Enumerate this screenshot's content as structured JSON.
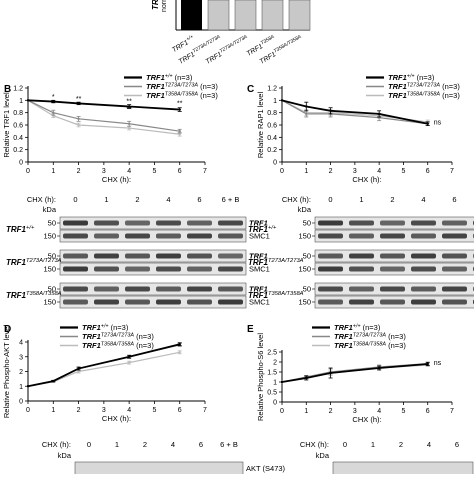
{
  "panel_a": {
    "ylabel": "TRF1",
    "ylabel2": "norm",
    "genotypes": [
      "TRF1+/+",
      "TRF1T273A/T273A",
      "TRF1T273A/T273A",
      "TRF1T358A",
      "TRF1T358A/T358A"
    ]
  },
  "panels": [
    {
      "letter": "B",
      "legend": [
        {
          "base": "TRF1",
          "sup": "+/+",
          "suffix": " (n=3)"
        },
        {
          "base": "TRF1",
          "sup": "T273A/T273A",
          "suffix": " (n=3)"
        },
        {
          "base": "TRF1",
          "sup": "T358A/T358A",
          "suffix": " (n=3)"
        }
      ]
    },
    {
      "letter": "C",
      "legend": [
        {
          "base": "TRF1",
          "sup": "+/+",
          "suffix": " (n=3)"
        },
        {
          "base": "TRF1",
          "sup": "T273A/T273A",
          "suffix": " (n=3)"
        },
        {
          "base": "TRF1",
          "sup": "T358A/T358A",
          "suffix": " (n=3)"
        }
      ]
    },
    {
      "letter": "D",
      "legend": [
        {
          "base": "TRF1",
          "sup": "+/+",
          "suffix": " (n=3)"
        },
        {
          "base": "TRF1",
          "sup": "T273A/T273A",
          "suffix": " (n=3)"
        },
        {
          "base": "TRF1",
          "sup": "T358A/T358A",
          "suffix": " (n=3)"
        }
      ]
    },
    {
      "letter": "E",
      "legend": [
        {
          "base": "TRF1",
          "sup": "+/+",
          "suffix": " (n=3)"
        },
        {
          "base": "TRF1",
          "sup": "T273A/T273A",
          "suffix": " (n=3)"
        },
        {
          "base": "TRF1",
          "sup": "T358A/T358A",
          "suffix": " (n=3)"
        }
      ]
    }
  ],
  "blots": {
    "header_prefix": "CHX (h):",
    "lanes": [
      "0",
      "1",
      "2",
      "4",
      "6",
      "6 + B"
    ],
    "kda": "kDa",
    "B": {
      "rows": [
        {
          "mw": "50",
          "protein": "TRF1",
          "italic": true
        },
        {
          "mw": "150",
          "protein": "SMC1",
          "italic": false
        },
        {
          "mw": "50",
          "protein": "TRF1",
          "italic": true
        },
        {
          "mw": "150",
          "protein": "SMC1",
          "italic": false
        },
        {
          "mw": "50",
          "protein": "TRF1",
          "italic": true
        },
        {
          "mw": "150",
          "protein": "SMC1",
          "italic": false
        }
      ],
      "genotypes": [
        {
          "base": "TRF1",
          "sup": "+/+"
        },
        {
          "base": "TRF1",
          "sup": "T273A/T273A"
        },
        {
          "base": "TRF1",
          "sup": "T358A/T358A"
        }
      ]
    },
    "C": {
      "rows": [
        {
          "mw": "50",
          "protein": "RAP1",
          "italic": false
        },
        {
          "mw": "150",
          "protein": "SMC1",
          "italic": false
        },
        {
          "mw": "50",
          "protein": "RAP1",
          "italic": false
        },
        {
          "mw": "150",
          "protein": "SMC1",
          "italic": false
        },
        {
          "mw": "50",
          "protein": "RAP1",
          "italic": false
        },
        {
          "mw": "150",
          "protein": "SMC1",
          "italic": false
        }
      ],
      "genotypes": [
        {
          "base": "TRF1",
          "sup": "+/+"
        },
        {
          "base": "TRF1",
          "sup": "T273A/T273A"
        },
        {
          "base": "TRF1",
          "sup": "T358A/T358A"
        }
      ]
    },
    "D_partial": {
      "label": "AKT (S473)"
    }
  },
  "chart_data": [
    {
      "type": "line",
      "panel": "B",
      "xlabel": "CHX (h):",
      "ylabel": "Relative TRF1 level",
      "xlim": [
        0,
        7
      ],
      "ylim": [
        0,
        1.2
      ],
      "xticks": [
        0,
        1,
        2,
        3,
        4,
        5,
        6,
        7
      ],
      "yticks": [
        0,
        0.2,
        0.4,
        0.6,
        0.8,
        1,
        1.2
      ],
      "ytick_labels": [
        "0",
        "0.2",
        "0.4",
        "0.6",
        "0.8",
        "1",
        "1.2"
      ],
      "x": [
        0,
        1,
        2,
        4,
        6
      ],
      "series": [
        {
          "name": "TRF1+/+",
          "values": [
            1.0,
            0.98,
            0.95,
            0.9,
            0.85
          ],
          "color": "#000000",
          "err": [
            0,
            0.02,
            0.02,
            0.03,
            0.03
          ]
        },
        {
          "name": "TRF1T273A/T273A",
          "values": [
            1.0,
            0.8,
            0.7,
            0.62,
            0.5
          ],
          "color": "#888888",
          "err": [
            0,
            0.04,
            0.04,
            0.04,
            0.03
          ]
        },
        {
          "name": "TRF1T358A/T358A",
          "values": [
            1.0,
            0.75,
            0.6,
            0.55,
            0.45
          ],
          "color": "#bbbbbb",
          "err": [
            0,
            0.03,
            0.03,
            0.03,
            0.03
          ]
        }
      ],
      "annotations": [
        {
          "x": 1,
          "y": 1.02,
          "text": "*"
        },
        {
          "x": 2,
          "y": 0.99,
          "text": "**"
        },
        {
          "x": 4,
          "y": 0.95,
          "text": "**"
        },
        {
          "x": 4,
          "y": 0.82,
          "text": "**"
        },
        {
          "x": 6,
          "y": 0.92,
          "text": "**"
        }
      ]
    },
    {
      "type": "line",
      "panel": "C",
      "xlabel": "CHX (h):",
      "ylabel": "Relative RAP1 level",
      "xlim": [
        0,
        7
      ],
      "ylim": [
        0,
        1.2
      ],
      "xticks": [
        0,
        1,
        2,
        3,
        4,
        5,
        6,
        7
      ],
      "yticks": [
        0,
        0.2,
        0.4,
        0.6,
        0.8,
        1,
        1.2
      ],
      "ytick_labels": [
        "0",
        "0.2",
        "0.4",
        "0.6",
        "0.8",
        "1",
        "1.2"
      ],
      "x": [
        0,
        1,
        2,
        4,
        6
      ],
      "series": [
        {
          "name": "TRF1+/+",
          "values": [
            1.0,
            0.9,
            0.83,
            0.78,
            0.62
          ],
          "color": "#000000",
          "err": [
            0,
            0.07,
            0.05,
            0.05,
            0.03
          ]
        },
        {
          "name": "TRF1T273A/T273A",
          "values": [
            1.0,
            0.78,
            0.78,
            0.72,
            0.62
          ],
          "color": "#888888",
          "err": [
            0,
            0.05,
            0.05,
            0.05,
            0.03
          ]
        },
        {
          "name": "TRF1T358A/T358A",
          "values": [
            1.0,
            0.8,
            0.8,
            0.75,
            0.65
          ],
          "color": "#bbbbbb",
          "err": [
            0,
            0.05,
            0.05,
            0.04,
            0.03
          ]
        }
      ],
      "annotations": [
        {
          "x": 6,
          "y": 0.64,
          "text": "ns"
        }
      ]
    },
    {
      "type": "line",
      "panel": "D",
      "xlabel": "CHX (h):",
      "ylabel": "Relative Phospho-AKT level",
      "xlim": [
        0,
        7
      ],
      "ylim": [
        0,
        4
      ],
      "xticks": [
        0,
        1,
        2,
        3,
        4,
        5,
        6,
        7
      ],
      "yticks": [
        0,
        1,
        2,
        3,
        4
      ],
      "ytick_labels": [
        "0",
        "1",
        "2",
        "3",
        "4"
      ],
      "x": [
        0,
        1,
        2,
        4,
        6
      ],
      "series": [
        {
          "name": "TRF1+/+",
          "values": [
            1.0,
            1.35,
            2.2,
            3.0,
            3.85
          ],
          "color": "#000000",
          "err": [
            0,
            0.05,
            0.1,
            0.1,
            0.1
          ]
        },
        {
          "name": "TRF1T273A/T273A",
          "values": [
            1.0,
            1.35,
            2.2,
            3.0,
            3.8
          ],
          "color": "#888888",
          "err": [
            0,
            0.05,
            0.1,
            0.1,
            0.1
          ]
        },
        {
          "name": "TRF1T358A/T358A",
          "values": [
            1.0,
            1.3,
            2.0,
            2.6,
            3.3
          ],
          "color": "#bbbbbb",
          "err": [
            0,
            0.05,
            0.1,
            0.1,
            0.1
          ]
        }
      ],
      "annotations": []
    },
    {
      "type": "line",
      "panel": "E",
      "xlabel": "CHX (h):",
      "ylabel": "Relative Phospho-S6 level",
      "xlim": [
        0,
        7
      ],
      "ylim": [
        0,
        2.5
      ],
      "xticks": [
        0,
        1,
        2,
        3,
        4,
        5,
        6,
        7
      ],
      "yticks": [
        0,
        0.5,
        1,
        1.5,
        2,
        2.5
      ],
      "ytick_labels": [
        "0",
        "0.5",
        "1",
        "1.5",
        "2",
        "2.5"
      ],
      "x": [
        0,
        1,
        2,
        4,
        6
      ],
      "series": [
        {
          "name": "TRF1+/+",
          "values": [
            1.0,
            1.2,
            1.45,
            1.7,
            1.9
          ],
          "color": "#000000",
          "err": [
            0,
            0.1,
            0.25,
            0.1,
            0.08
          ]
        },
        {
          "name": "TRF1T273A/T273A",
          "values": [
            1.0,
            1.25,
            1.5,
            1.75,
            1.92
          ],
          "color": "#888888",
          "err": [
            0,
            0.08,
            0.15,
            0.1,
            0.08
          ]
        },
        {
          "name": "TRF1T358A/T358A",
          "values": [
            1.0,
            1.22,
            1.45,
            1.7,
            1.85
          ],
          "color": "#bbbbbb",
          "err": [
            0,
            0.08,
            0.1,
            0.08,
            0.08
          ]
        }
      ],
      "annotations": [
        {
          "x": 6,
          "y": 1.95,
          "text": "ns"
        }
      ]
    }
  ]
}
